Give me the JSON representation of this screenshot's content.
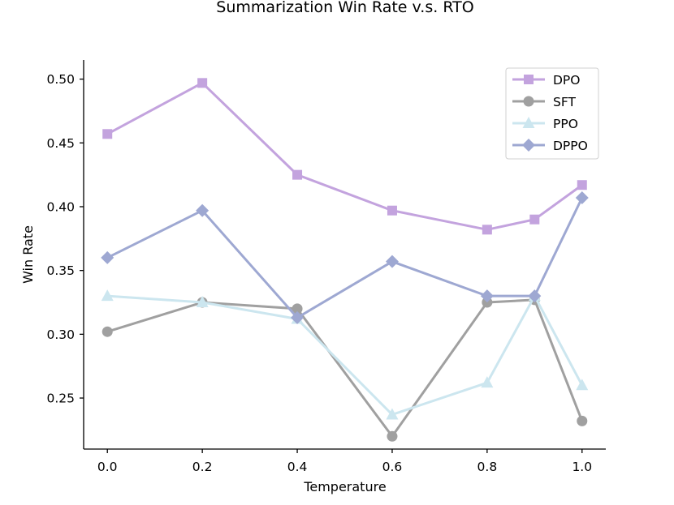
{
  "chart_data": {
    "type": "line",
    "title": "Summarization Win Rate v.s. RTO",
    "xlabel": "Temperature",
    "ylabel": "Win Rate",
    "xlim": [
      -0.05,
      1.05
    ],
    "ylim": [
      0.21,
      0.515
    ],
    "x_ticks": [
      "0.0",
      "0.2",
      "0.4",
      "0.6",
      "0.8",
      "1.0"
    ],
    "y_ticks": [
      "0.25",
      "0.30",
      "0.35",
      "0.40",
      "0.45",
      "0.50"
    ],
    "grid": false,
    "legend_position": "top-right",
    "series": [
      {
        "name": "DPO",
        "color": "#c3a3de",
        "marker": "square",
        "x": [
          0.0,
          0.2,
          0.4,
          0.6,
          0.8,
          0.9,
          1.0
        ],
        "y": [
          0.457,
          0.497,
          0.425,
          0.397,
          0.382,
          0.39,
          0.417
        ]
      },
      {
        "name": "SFT",
        "color": "#a0a0a0",
        "marker": "circle",
        "x": [
          0.0,
          0.2,
          0.4,
          0.6,
          0.8,
          0.9,
          1.0
        ],
        "y": [
          0.302,
          0.325,
          0.32,
          0.22,
          0.325,
          0.327,
          0.232
        ]
      },
      {
        "name": "PPO",
        "color": "#cce6ef",
        "marker": "triangle",
        "x": [
          0.0,
          0.2,
          0.4,
          0.6,
          0.8,
          0.9,
          1.0
        ],
        "y": [
          0.33,
          0.325,
          0.312,
          0.237,
          0.262,
          0.33,
          0.26
        ]
      },
      {
        "name": "DPPO",
        "color": "#9ea8d2",
        "marker": "diamond",
        "x": [
          0.0,
          0.2,
          0.4,
          0.6,
          0.8,
          0.9,
          1.0
        ],
        "y": [
          0.36,
          0.397,
          0.313,
          0.357,
          0.33,
          0.33,
          0.407
        ]
      }
    ]
  }
}
